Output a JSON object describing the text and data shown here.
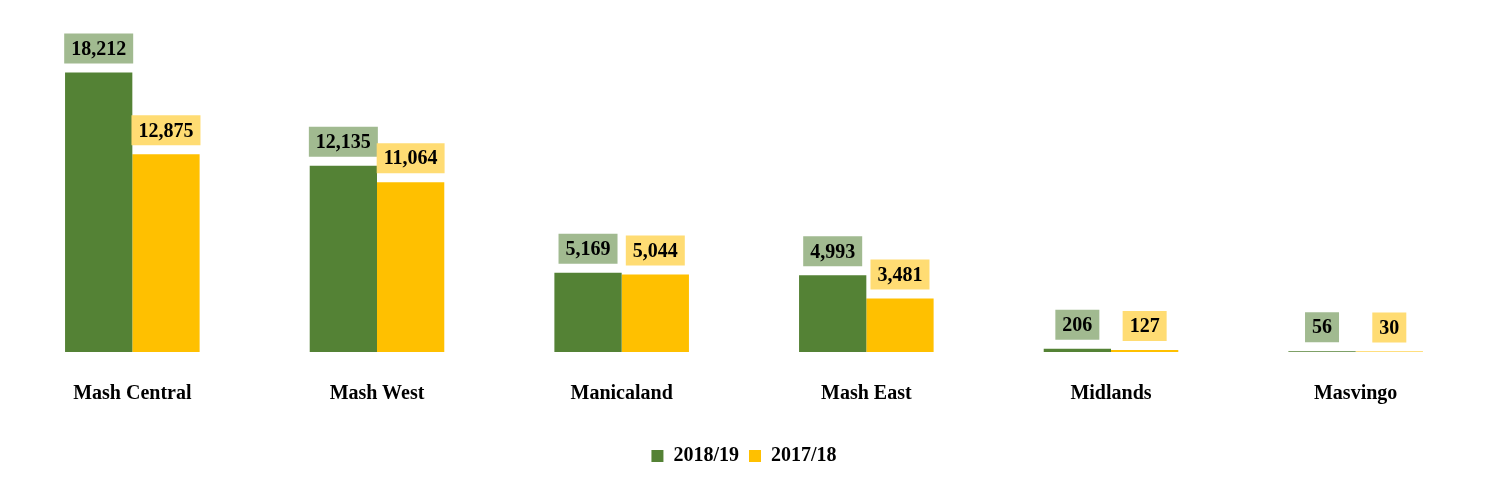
{
  "chart_data": {
    "type": "bar",
    "categories": [
      "Mash Central",
      "Mash West",
      "Manicaland",
      "Mash East",
      "Midlands",
      "Masvingo"
    ],
    "series": [
      {
        "name": "2018/19",
        "color": "#548235",
        "values": [
          18212,
          12135,
          5169,
          4993,
          206,
          56
        ],
        "value_labels": [
          "18,212",
          "12,135",
          "5,169",
          "4,993",
          "206",
          "56"
        ]
      },
      {
        "name": "2017/18",
        "color": "#ffc000",
        "values": [
          12875,
          11064,
          5044,
          3481,
          127,
          30
        ],
        "value_labels": [
          "12,875",
          "11,064",
          "5,044",
          "3,481",
          "127",
          "30"
        ]
      }
    ],
    "legend": "bottom",
    "grid": false
  }
}
